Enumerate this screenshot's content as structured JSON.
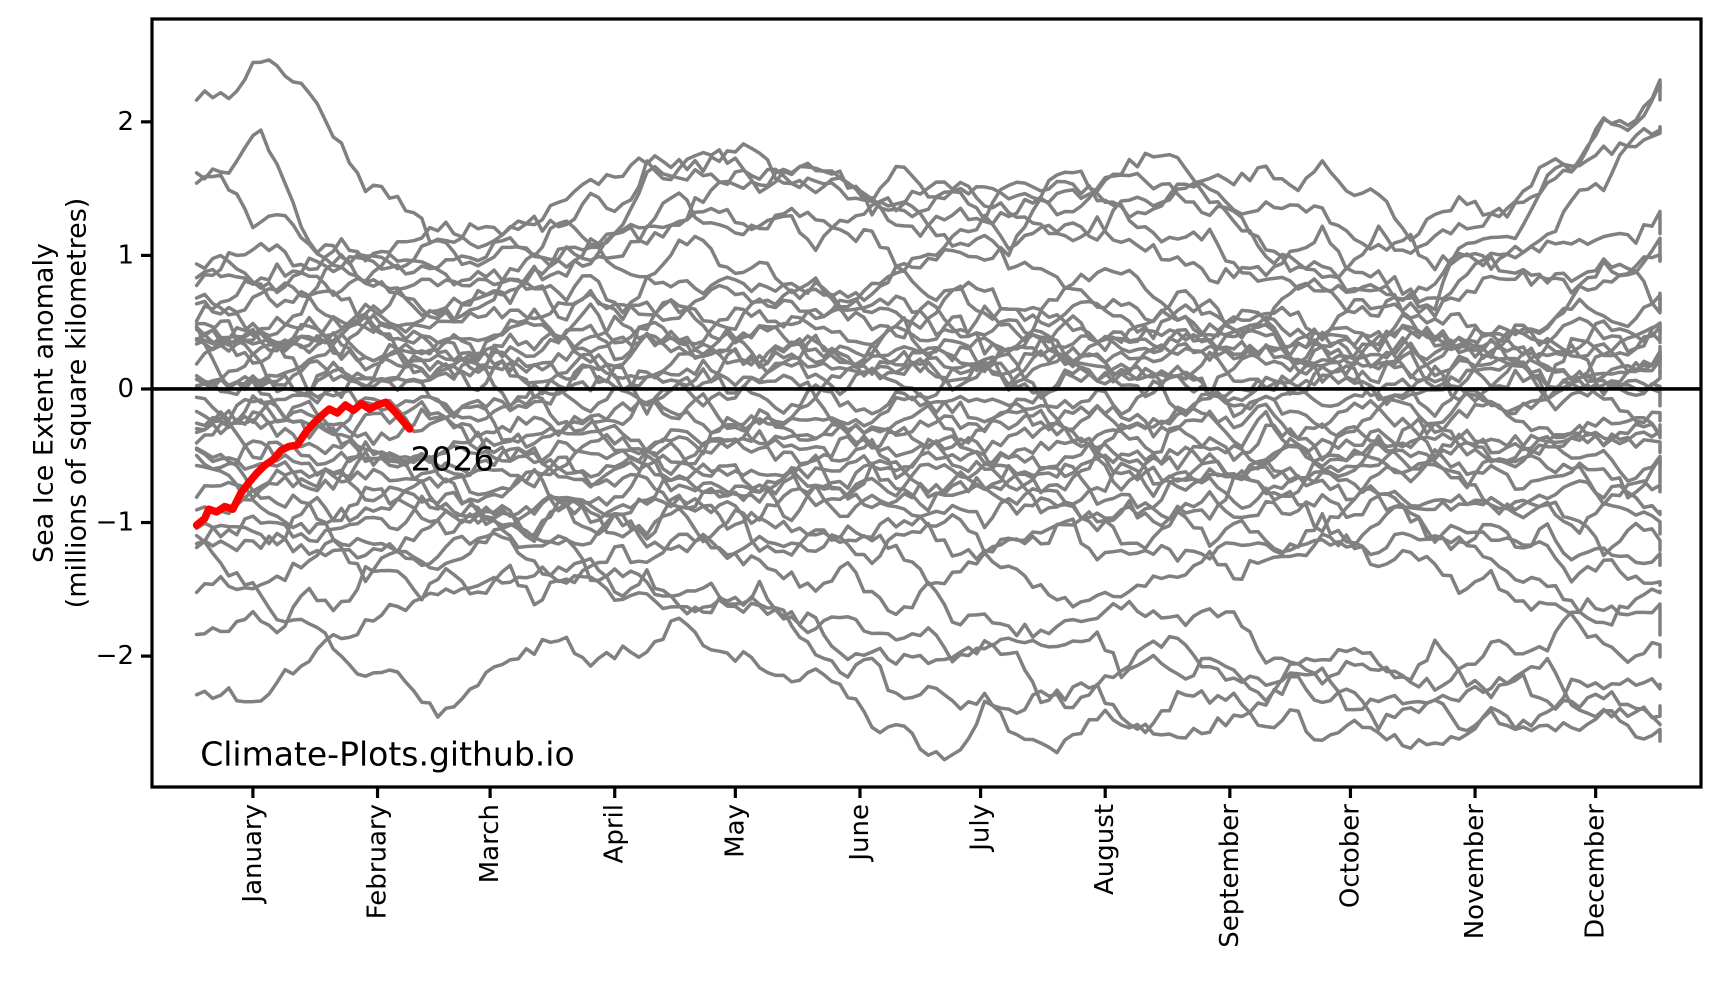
{
  "window": {
    "background": "#ffffff"
  },
  "chart_data": {
    "type": "line",
    "title": "",
    "ylabel_line1": "Sea Ice Extent anomaly",
    "ylabel_line2": "(millions of square kilometres)",
    "watermark": "Climate-Plots.github.io",
    "colors": {
      "background_series": "#808080",
      "highlight": "#ff0000",
      "zero_line": "#000000",
      "axis": "#000000",
      "text": "#000000"
    },
    "y_axis": {
      "ticks": [
        2,
        1,
        0,
        -1,
        -2
      ],
      "tick_labels": [
        "2",
        "1",
        "0",
        "−1",
        "−2"
      ],
      "min": -2.98,
      "max": 2.77
    },
    "x_axis": {
      "months": [
        "January",
        "February",
        "March",
        "April",
        "May",
        "June",
        "July",
        "August",
        "September",
        "October",
        "November",
        "December"
      ],
      "mid_month_days": [
        15,
        46,
        74,
        105,
        135,
        166,
        196,
        227,
        258,
        288,
        319,
        349
      ],
      "day_min": -10.1,
      "day_max": 375.2
    },
    "zero_line_value": 0,
    "highlight_series": {
      "label": "2026",
      "days": [
        1,
        3,
        4,
        6,
        8,
        10,
        12,
        14,
        16,
        18,
        20,
        22,
        24,
        26,
        28,
        30,
        32,
        34,
        36,
        38,
        40,
        42,
        44,
        46,
        48,
        50,
        52,
        54
      ],
      "values": [
        -1.02,
        -0.97,
        -0.9,
        -0.92,
        -0.88,
        -0.9,
        -0.78,
        -0.7,
        -0.63,
        -0.57,
        -0.53,
        -0.46,
        -0.43,
        -0.42,
        -0.33,
        -0.26,
        -0.2,
        -0.15,
        -0.18,
        -0.12,
        -0.16,
        -0.11,
        -0.15,
        -0.12,
        -0.1,
        -0.16,
        -0.23,
        -0.3
      ],
      "label_anchor": {
        "day": 54.2,
        "value": -0.61
      }
    },
    "watermark_anchor": {
      "day": 1.9,
      "value": -2.82
    },
    "background_series": {
      "anchor_days": [
        1,
        16,
        32,
        60,
        91,
        121,
        152,
        182,
        213,
        244,
        274,
        305,
        335,
        365
      ],
      "series": [
        [
          2.05,
          2.45,
          2.1,
          0.95,
          0.85,
          1.3,
          1.6,
          1.25,
          0.95,
          0.65,
          0.35,
          0.25,
          0.2,
          0.15
        ],
        [
          1.62,
          1.8,
          1.1,
          0.6,
          0.7,
          0.8,
          0.7,
          0.5,
          0.4,
          0.3,
          0.3,
          0.3,
          0.5,
          0.92
        ],
        [
          1.5,
          1.4,
          0.9,
          0.55,
          0.9,
          1.7,
          1.5,
          1.4,
          1.5,
          1.2,
          0.8,
          0.6,
          0.5,
          0.4
        ],
        [
          0.9,
          0.95,
          1.0,
          1.1,
          1.2,
          1.7,
          1.55,
          1.3,
          1.5,
          1.7,
          0.9,
          0.8,
          1.0,
          1.2
        ],
        [
          0.8,
          0.75,
          0.85,
          0.9,
          1.05,
          1.3,
          1.2,
          1.5,
          1.2,
          0.9,
          1.0,
          1.1,
          1.5,
          2.2
        ],
        [
          0.7,
          0.65,
          0.6,
          0.8,
          0.9,
          1.0,
          0.8,
          0.9,
          1.3,
          1.55,
          0.9,
          0.8,
          1.2,
          2.0
        ],
        [
          0.6,
          0.55,
          0.5,
          0.6,
          0.7,
          0.6,
          0.7,
          0.8,
          0.6,
          0.5,
          0.6,
          0.7,
          1.4,
          2.25
        ],
        [
          0.5,
          0.55,
          0.6,
          0.5,
          0.4,
          0.6,
          0.5,
          0.6,
          0.7,
          0.6,
          0.5,
          0.6,
          0.8,
          1.0
        ],
        [
          0.45,
          0.4,
          0.35,
          0.5,
          0.6,
          0.5,
          0.4,
          0.5,
          0.4,
          0.45,
          0.5,
          0.4,
          0.5,
          0.6
        ],
        [
          0.4,
          0.45,
          0.5,
          0.4,
          0.3,
          0.4,
          0.5,
          0.4,
          0.3,
          0.4,
          0.3,
          0.45,
          0.4,
          0.5
        ],
        [
          0.35,
          0.3,
          0.25,
          0.3,
          0.45,
          0.35,
          0.3,
          0.4,
          0.45,
          0.3,
          0.4,
          0.3,
          0.2,
          0.3
        ],
        [
          0.3,
          0.35,
          0.4,
          0.35,
          0.2,
          0.3,
          0.25,
          0.3,
          0.2,
          0.35,
          0.3,
          0.2,
          0.3,
          0.2
        ],
        [
          0.25,
          0.2,
          0.15,
          0.2,
          0.3,
          0.2,
          0.3,
          0.2,
          0.3,
          0.2,
          0.25,
          0.35,
          0.2,
          0.1
        ],
        [
          0.2,
          0.25,
          0.3,
          0.25,
          0.1,
          0.2,
          0.15,
          0.25,
          0.1,
          0.2,
          0.1,
          0.15,
          0.1,
          0.3
        ],
        [
          0.1,
          0.15,
          0.2,
          0.1,
          0.2,
          0.1,
          0.2,
          0.1,
          0.2,
          0.1,
          0.15,
          0.05,
          0.2,
          0.4
        ],
        [
          0.05,
          0.08,
          0.1,
          0.15,
          0.05,
          0.1,
          0.05,
          0.15,
          0.05,
          0.1,
          0.05,
          0.1,
          0.0,
          -0.1
        ],
        [
          0.0,
          0.05,
          0.1,
          0.0,
          0.1,
          0.0,
          0.05,
          0.0,
          0.1,
          0.0,
          0.05,
          0.0,
          0.1,
          0.0
        ],
        [
          -0.05,
          -0.02,
          0.0,
          -0.1,
          0.0,
          -0.05,
          0.0,
          -0.1,
          0.0,
          -0.05,
          0.0,
          -0.1,
          -0.05,
          0.1
        ],
        [
          -0.1,
          -0.15,
          -0.2,
          -0.1,
          -0.15,
          -0.1,
          -0.2,
          -0.1,
          -0.2,
          -0.15,
          -0.1,
          -0.2,
          -0.1,
          -0.2
        ],
        [
          -0.15,
          -0.12,
          -0.1,
          -0.2,
          -0.25,
          -0.2,
          -0.1,
          -0.25,
          -0.15,
          -0.2,
          -0.25,
          -0.15,
          -0.25,
          -0.3
        ],
        [
          -0.2,
          -0.25,
          -0.3,
          -0.25,
          -0.35,
          -0.3,
          -0.35,
          -0.3,
          -0.35,
          -0.3,
          -0.35,
          -0.4,
          -0.3,
          -0.4
        ],
        [
          -0.3,
          -0.25,
          -0.2,
          -0.35,
          -0.3,
          -0.4,
          -0.3,
          -0.4,
          -0.3,
          -0.45,
          -0.4,
          -0.3,
          -0.45,
          -0.5
        ],
        [
          -0.35,
          -0.4,
          -0.45,
          -0.4,
          -0.5,
          -0.45,
          -0.5,
          -0.45,
          -0.5,
          -0.4,
          -0.5,
          -0.55,
          -0.4,
          -0.3
        ],
        [
          -0.4,
          -0.35,
          -0.3,
          -0.5,
          -0.45,
          -0.55,
          -0.45,
          -0.55,
          -0.45,
          -0.55,
          -0.5,
          -0.45,
          -0.55,
          -0.6
        ],
        [
          -0.5,
          -0.55,
          -0.6,
          -0.55,
          -0.6,
          -0.55,
          -0.65,
          -0.55,
          -0.65,
          -0.6,
          -0.55,
          -0.65,
          -0.6,
          -0.7
        ],
        [
          -0.55,
          -0.52,
          -0.5,
          -0.65,
          -0.55,
          -0.7,
          -0.55,
          -0.7,
          -0.6,
          -0.7,
          -0.65,
          -0.55,
          -0.7,
          -0.8
        ],
        [
          -0.6,
          -0.65,
          -0.7,
          -0.6,
          -0.75,
          -0.6,
          -0.75,
          -0.65,
          -0.75,
          -0.65,
          -0.75,
          -0.7,
          -0.8,
          -0.9
        ],
        [
          -0.7,
          -0.65,
          -0.6,
          -0.75,
          -0.65,
          -0.8,
          -0.65,
          -0.8,
          -0.7,
          -0.8,
          -0.7,
          -0.8,
          -0.9,
          -1.1
        ],
        [
          -0.8,
          -0.85,
          -0.9,
          -0.8,
          -0.9,
          -0.75,
          -0.9,
          -0.75,
          -0.9,
          -0.8,
          -0.9,
          -0.85,
          -1.0,
          -1.2
        ],
        [
          -0.9,
          -0.85,
          -0.8,
          -0.95,
          -0.85,
          -1.0,
          -0.85,
          -1.0,
          -0.9,
          -1.0,
          -0.9,
          -1.0,
          -1.1,
          -1.3
        ],
        [
          -1.0,
          -1.05,
          -1.1,
          -0.95,
          -1.1,
          -0.95,
          -1.1,
          -1.0,
          -1.1,
          -1.0,
          -1.1,
          -1.0,
          -1.2,
          -1.45
        ],
        [
          -1.1,
          -1.05,
          -1.0,
          -1.2,
          -1.0,
          -1.2,
          -1.05,
          -1.2,
          -1.1,
          -1.2,
          -1.1,
          -1.2,
          -1.4,
          -1.8
        ],
        [
          -1.3,
          -1.25,
          -1.2,
          -1.1,
          -0.9,
          -1.0,
          -1.1,
          -1.3,
          -1.5,
          -1.4,
          -1.2,
          -1.3,
          -1.6,
          -2.0
        ],
        [
          -1.5,
          -1.4,
          -1.3,
          -1.2,
          -1.3,
          -1.2,
          -1.4,
          -1.6,
          -1.8,
          -1.7,
          -1.9,
          -2.1,
          -1.8,
          -1.5
        ],
        [
          -1.8,
          -1.7,
          -1.6,
          -1.4,
          -1.5,
          -1.6,
          -1.8,
          -2.0,
          -1.9,
          -2.1,
          -2.2,
          -2.0,
          -2.3,
          -2.55
        ],
        [
          -2.3,
          -2.4,
          -1.9,
          -1.5,
          -1.3,
          -1.5,
          -1.7,
          -1.9,
          -2.2,
          -2.0,
          -2.2,
          -2.4,
          -2.2,
          -2.4
        ],
        [
          -1.0,
          -1.5,
          -1.9,
          -2.3,
          -2.0,
          -1.8,
          -2.2,
          -2.7,
          -2.3,
          -2.5,
          -2.3,
          -2.4,
          -2.5,
          -2.6
        ],
        [
          0.3,
          0.0,
          -0.3,
          -0.8,
          -1.2,
          -1.5,
          -1.9,
          -2.3,
          -2.6,
          -2.4,
          -2.5,
          -2.6,
          -2.4,
          -2.2
        ],
        [
          1.0,
          0.9,
          0.8,
          0.9,
          1.2,
          1.4,
          1.2,
          1.0,
          1.2,
          1.4,
          1.6,
          1.2,
          1.4,
          1.9
        ],
        [
          0.6,
          0.7,
          0.8,
          1.1,
          1.4,
          1.85,
          1.6,
          1.55,
          1.3,
          1.5,
          1.3,
          1.1,
          0.9,
          0.7
        ]
      ]
    }
  }
}
